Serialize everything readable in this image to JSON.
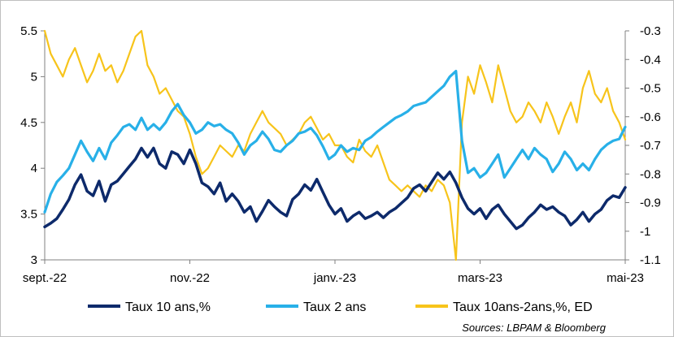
{
  "chart_data": {
    "type": "line",
    "title": "",
    "xlabel": "",
    "ylabel": "",
    "ylabel_right": "",
    "x_tick_labels": [
      "sept.-22",
      "nov.-22",
      "janv.-23",
      "mars-23",
      "mai-23"
    ],
    "y_left_ticks": [
      "3",
      "3.5",
      "4",
      "4.5",
      "5",
      "5.5"
    ],
    "y_right_ticks": [
      "-1.1",
      "-1",
      "-0.9",
      "-0.8",
      "-0.7",
      "-0.6",
      "-0.5",
      "-0.4",
      "-0.3"
    ],
    "ylim_left": [
      3,
      5.5
    ],
    "ylim_right": [
      -1.1,
      -0.3
    ],
    "grid": "none",
    "legend_position": "bottom",
    "source": "Sources: LBPAM & Bloomberg",
    "series": [
      {
        "name": "Taux 10  ans,%",
        "axis": "left",
        "color": "#0d2a6b",
        "points": [
          [
            0,
            3.36
          ],
          [
            1,
            3.4
          ],
          [
            2,
            3.45
          ],
          [
            3,
            3.55
          ],
          [
            4,
            3.66
          ],
          [
            5,
            3.82
          ],
          [
            6,
            3.93
          ],
          [
            7,
            3.75
          ],
          [
            8,
            3.7
          ],
          [
            9,
            3.86
          ],
          [
            10,
            3.64
          ],
          [
            11,
            3.82
          ],
          [
            12,
            3.86
          ],
          [
            13,
            3.94
          ],
          [
            14,
            4.02
          ],
          [
            15,
            4.1
          ],
          [
            16,
            4.22
          ],
          [
            17,
            4.12
          ],
          [
            18,
            4.22
          ],
          [
            19,
            4.05
          ],
          [
            20,
            4.0
          ],
          [
            21,
            4.18
          ],
          [
            22,
            4.15
          ],
          [
            23,
            4.05
          ],
          [
            24,
            4.2
          ],
          [
            25,
            4.05
          ],
          [
            26,
            3.84
          ],
          [
            27,
            3.8
          ],
          [
            28,
            3.72
          ],
          [
            29,
            3.84
          ],
          [
            30,
            3.64
          ],
          [
            31,
            3.72
          ],
          [
            32,
            3.64
          ],
          [
            33,
            3.52
          ],
          [
            34,
            3.58
          ],
          [
            35,
            3.42
          ],
          [
            36,
            3.53
          ],
          [
            37,
            3.65
          ],
          [
            38,
            3.58
          ],
          [
            39,
            3.52
          ],
          [
            40,
            3.48
          ],
          [
            41,
            3.66
          ],
          [
            42,
            3.72
          ],
          [
            43,
            3.82
          ],
          [
            44,
            3.76
          ],
          [
            45,
            3.88
          ],
          [
            46,
            3.74
          ],
          [
            47,
            3.6
          ],
          [
            48,
            3.5
          ],
          [
            49,
            3.56
          ],
          [
            50,
            3.42
          ],
          [
            51,
            3.48
          ],
          [
            52,
            3.52
          ],
          [
            53,
            3.45
          ],
          [
            54,
            3.48
          ],
          [
            55,
            3.52
          ],
          [
            56,
            3.46
          ],
          [
            57,
            3.52
          ],
          [
            58,
            3.56
          ],
          [
            59,
            3.62
          ],
          [
            60,
            3.68
          ],
          [
            61,
            3.78
          ],
          [
            62,
            3.82
          ],
          [
            63,
            3.75
          ],
          [
            64,
            3.85
          ],
          [
            65,
            3.95
          ],
          [
            66,
            3.88
          ],
          [
            67,
            3.96
          ],
          [
            68,
            3.84
          ],
          [
            69,
            3.68
          ],
          [
            70,
            3.56
          ],
          [
            71,
            3.5
          ],
          [
            72,
            3.56
          ],
          [
            73,
            3.45
          ],
          [
            74,
            3.55
          ],
          [
            75,
            3.6
          ],
          [
            76,
            3.5
          ],
          [
            77,
            3.42
          ],
          [
            78,
            3.34
          ],
          [
            79,
            3.38
          ],
          [
            80,
            3.46
          ],
          [
            81,
            3.52
          ],
          [
            82,
            3.6
          ],
          [
            83,
            3.55
          ],
          [
            84,
            3.58
          ],
          [
            85,
            3.52
          ],
          [
            86,
            3.48
          ],
          [
            87,
            3.38
          ],
          [
            88,
            3.44
          ],
          [
            89,
            3.52
          ],
          [
            90,
            3.42
          ],
          [
            91,
            3.5
          ],
          [
            92,
            3.55
          ],
          [
            93,
            3.65
          ],
          [
            94,
            3.7
          ],
          [
            95,
            3.68
          ],
          [
            96,
            3.79
          ]
        ]
      },
      {
        "name": "Taux 2 ans",
        "axis": "left",
        "color": "#28b0e8",
        "points": [
          [
            0,
            3.52
          ],
          [
            1,
            3.72
          ],
          [
            2,
            3.85
          ],
          [
            3,
            3.92
          ],
          [
            4,
            4.0
          ],
          [
            5,
            4.15
          ],
          [
            6,
            4.3
          ],
          [
            7,
            4.18
          ],
          [
            8,
            4.08
          ],
          [
            9,
            4.22
          ],
          [
            10,
            4.1
          ],
          [
            11,
            4.28
          ],
          [
            12,
            4.36
          ],
          [
            13,
            4.45
          ],
          [
            14,
            4.48
          ],
          [
            15,
            4.42
          ],
          [
            16,
            4.55
          ],
          [
            17,
            4.42
          ],
          [
            18,
            4.48
          ],
          [
            19,
            4.42
          ],
          [
            20,
            4.5
          ],
          [
            21,
            4.62
          ],
          [
            22,
            4.7
          ],
          [
            23,
            4.58
          ],
          [
            24,
            4.5
          ],
          [
            25,
            4.38
          ],
          [
            26,
            4.42
          ],
          [
            27,
            4.5
          ],
          [
            28,
            4.46
          ],
          [
            29,
            4.48
          ],
          [
            30,
            4.42
          ],
          [
            31,
            4.38
          ],
          [
            32,
            4.28
          ],
          [
            33,
            4.15
          ],
          [
            34,
            4.25
          ],
          [
            35,
            4.3
          ],
          [
            36,
            4.4
          ],
          [
            37,
            4.32
          ],
          [
            38,
            4.2
          ],
          [
            39,
            4.18
          ],
          [
            40,
            4.25
          ],
          [
            41,
            4.3
          ],
          [
            42,
            4.38
          ],
          [
            43,
            4.4
          ],
          [
            44,
            4.44
          ],
          [
            45,
            4.36
          ],
          [
            46,
            4.24
          ],
          [
            47,
            4.1
          ],
          [
            48,
            4.15
          ],
          [
            49,
            4.25
          ],
          [
            50,
            4.18
          ],
          [
            51,
            4.22
          ],
          [
            52,
            4.2
          ],
          [
            53,
            4.3
          ],
          [
            54,
            4.34
          ],
          [
            55,
            4.4
          ],
          [
            56,
            4.45
          ],
          [
            57,
            4.5
          ],
          [
            58,
            4.55
          ],
          [
            59,
            4.58
          ],
          [
            60,
            4.62
          ],
          [
            61,
            4.68
          ],
          [
            62,
            4.7
          ],
          [
            63,
            4.72
          ],
          [
            64,
            4.78
          ],
          [
            65,
            4.84
          ],
          [
            66,
            4.9
          ],
          [
            67,
            5.0
          ],
          [
            68,
            5.06
          ],
          [
            69,
            4.3
          ],
          [
            70,
            3.95
          ],
          [
            71,
            4.0
          ],
          [
            72,
            3.9
          ],
          [
            73,
            3.95
          ],
          [
            74,
            4.05
          ],
          [
            75,
            4.15
          ],
          [
            76,
            3.9
          ],
          [
            77,
            4.0
          ],
          [
            78,
            4.1
          ],
          [
            79,
            4.2
          ],
          [
            80,
            4.1
          ],
          [
            81,
            4.22
          ],
          [
            82,
            4.15
          ],
          [
            83,
            4.1
          ],
          [
            84,
            3.96
          ],
          [
            85,
            4.05
          ],
          [
            86,
            4.18
          ],
          [
            87,
            4.1
          ],
          [
            88,
            3.98
          ],
          [
            89,
            4.05
          ],
          [
            90,
            3.98
          ],
          [
            91,
            4.1
          ],
          [
            92,
            4.2
          ],
          [
            93,
            4.26
          ],
          [
            94,
            4.3
          ],
          [
            95,
            4.32
          ],
          [
            96,
            4.45
          ]
        ]
      },
      {
        "name": "Taux 10ans-2ans,%, ED",
        "axis": "right",
        "color": "#f7c41b",
        "points": [
          [
            0,
            -0.3
          ],
          [
            1,
            -0.38
          ],
          [
            2,
            -0.42
          ],
          [
            3,
            -0.46
          ],
          [
            4,
            -0.4
          ],
          [
            5,
            -0.36
          ],
          [
            6,
            -0.42
          ],
          [
            7,
            -0.48
          ],
          [
            8,
            -0.44
          ],
          [
            9,
            -0.38
          ],
          [
            10,
            -0.44
          ],
          [
            11,
            -0.42
          ],
          [
            12,
            -0.48
          ],
          [
            13,
            -0.44
          ],
          [
            14,
            -0.38
          ],
          [
            15,
            -0.32
          ],
          [
            16,
            -0.3
          ],
          [
            17,
            -0.42
          ],
          [
            18,
            -0.46
          ],
          [
            19,
            -0.52
          ],
          [
            20,
            -0.5
          ],
          [
            21,
            -0.54
          ],
          [
            22,
            -0.58
          ],
          [
            23,
            -0.6
          ],
          [
            24,
            -0.66
          ],
          [
            25,
            -0.74
          ],
          [
            26,
            -0.8
          ],
          [
            27,
            -0.78
          ],
          [
            28,
            -0.74
          ],
          [
            29,
            -0.7
          ],
          [
            30,
            -0.72
          ],
          [
            31,
            -0.74
          ],
          [
            32,
            -0.7
          ],
          [
            33,
            -0.72
          ],
          [
            34,
            -0.66
          ],
          [
            35,
            -0.62
          ],
          [
            36,
            -0.58
          ],
          [
            37,
            -0.62
          ],
          [
            38,
            -0.64
          ],
          [
            39,
            -0.66
          ],
          [
            40,
            -0.7
          ],
          [
            41,
            -0.68
          ],
          [
            42,
            -0.66
          ],
          [
            43,
            -0.62
          ],
          [
            44,
            -0.6
          ],
          [
            45,
            -0.64
          ],
          [
            46,
            -0.68
          ],
          [
            47,
            -0.66
          ],
          [
            48,
            -0.7
          ],
          [
            49,
            -0.7
          ],
          [
            50,
            -0.74
          ],
          [
            51,
            -0.76
          ],
          [
            52,
            -0.68
          ],
          [
            53,
            -0.72
          ],
          [
            54,
            -0.74
          ],
          [
            55,
            -0.7
          ],
          [
            56,
            -0.76
          ],
          [
            57,
            -0.82
          ],
          [
            58,
            -0.84
          ],
          [
            59,
            -0.86
          ],
          [
            60,
            -0.84
          ],
          [
            61,
            -0.86
          ],
          [
            62,
            -0.88
          ],
          [
            63,
            -0.84
          ],
          [
            64,
            -0.86
          ],
          [
            65,
            -0.82
          ],
          [
            66,
            -0.84
          ],
          [
            67,
            -0.9
          ],
          [
            68,
            -1.1
          ],
          [
            69,
            -0.62
          ],
          [
            70,
            -0.46
          ],
          [
            71,
            -0.52
          ],
          [
            72,
            -0.42
          ],
          [
            73,
            -0.48
          ],
          [
            74,
            -0.55
          ],
          [
            75,
            -0.42
          ],
          [
            76,
            -0.5
          ],
          [
            77,
            -0.58
          ],
          [
            78,
            -0.62
          ],
          [
            79,
            -0.6
          ],
          [
            80,
            -0.55
          ],
          [
            81,
            -0.58
          ],
          [
            82,
            -0.62
          ],
          [
            83,
            -0.55
          ],
          [
            84,
            -0.6
          ],
          [
            85,
            -0.66
          ],
          [
            86,
            -0.6
          ],
          [
            87,
            -0.55
          ],
          [
            88,
            -0.62
          ],
          [
            89,
            -0.5
          ],
          [
            90,
            -0.44
          ],
          [
            91,
            -0.52
          ],
          [
            92,
            -0.55
          ],
          [
            93,
            -0.5
          ],
          [
            94,
            -0.58
          ],
          [
            95,
            -0.62
          ],
          [
            96,
            -0.68
          ]
        ]
      }
    ]
  }
}
